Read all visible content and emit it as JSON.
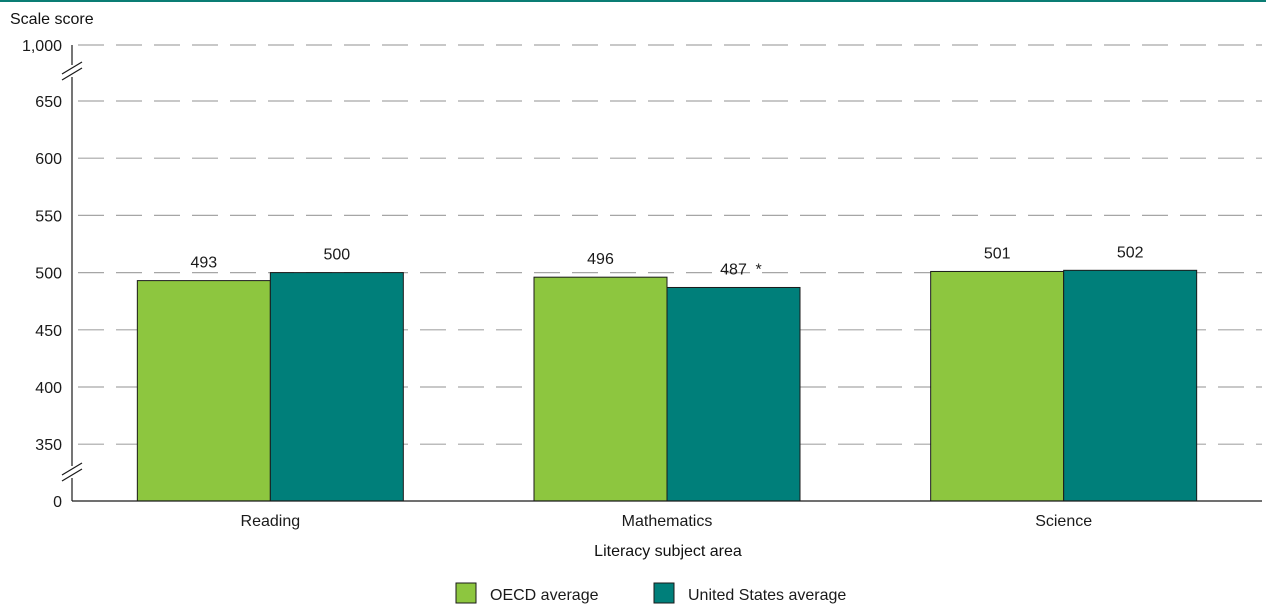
{
  "chart_data": {
    "type": "bar",
    "title": "",
    "ylabel": "Scale score",
    "xlabel": "Literacy subject area",
    "categories": [
      "Reading",
      "Mathematics",
      "Science"
    ],
    "series": [
      {
        "name": "OECD average",
        "color": "#8dc63f",
        "values": [
          493,
          496,
          501
        ],
        "labels": [
          "493",
          "496",
          "501"
        ]
      },
      {
        "name": "United States average",
        "color": "#007f7a",
        "values": [
          500,
          487,
          502
        ],
        "labels": [
          "500",
          "487",
          "502"
        ]
      }
    ],
    "annotations": [
      {
        "category": "Mathematics",
        "series": "United States average",
        "text": "*"
      }
    ],
    "yticks": [
      "1,000",
      "650",
      "600",
      "550",
      "500",
      "450",
      "400",
      "350",
      "0"
    ],
    "ylim": [
      300,
      700
    ],
    "axis_breaks": [
      {
        "between": [
          650,
          1000
        ]
      },
      {
        "between": [
          0,
          350
        ]
      }
    ],
    "grid": true,
    "grid_style": "dashed",
    "legend_position": "bottom-center"
  }
}
